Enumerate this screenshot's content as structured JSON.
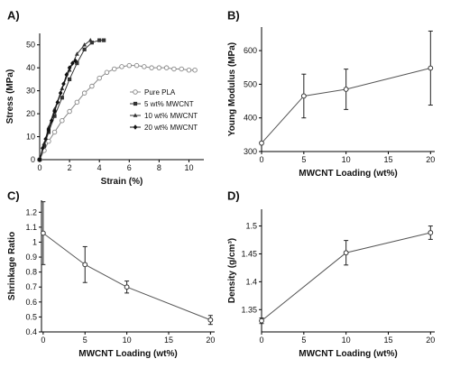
{
  "chart_data": [
    {
      "panel": "A)",
      "type": "line",
      "xlabel": "Strain (%)",
      "ylabel": "Stress (MPa)",
      "xlim": [
        0,
        11
      ],
      "ylim": [
        0,
        55
      ],
      "xticks": [
        0,
        2,
        4,
        6,
        8,
        10
      ],
      "yticks": [
        0,
        10,
        20,
        30,
        40,
        50
      ],
      "grid": false,
      "legend_position": "center-right",
      "series": [
        {
          "name": "Pure PLA",
          "marker": "circle-open",
          "color": "#888888",
          "x": [
            0,
            0.3,
            0.6,
            1.0,
            1.5,
            2.0,
            2.5,
            3.0,
            3.5,
            4.0,
            4.5,
            5.0,
            5.5,
            6.0,
            6.5,
            7.0,
            7.5,
            8.0,
            8.5,
            9.0,
            9.5,
            10.0,
            10.4
          ],
          "y": [
            0,
            4,
            8,
            12,
            17,
            21,
            25,
            29,
            32,
            35.5,
            38,
            39.5,
            40.5,
            41,
            41,
            40.5,
            40,
            40,
            40,
            39.5,
            39.5,
            39,
            39
          ]
        },
        {
          "name": "5 wt% MWCNT",
          "marker": "square",
          "color": "#333333",
          "x": [
            0,
            0.3,
            0.6,
            1.0,
            1.5,
            2.0,
            2.5,
            3.0,
            3.5,
            4.0,
            4.3
          ],
          "y": [
            0,
            6,
            12,
            19,
            27,
            35,
            42,
            48,
            51,
            52,
            52
          ]
        },
        {
          "name": "10 wt% MWCNT",
          "marker": "triangle",
          "color": "#333333",
          "x": [
            0,
            0.3,
            0.6,
            1.0,
            1.5,
            2.0,
            2.5,
            3.0,
            3.4
          ],
          "y": [
            0,
            7,
            14,
            22,
            31,
            39,
            46,
            50,
            52
          ]
        },
        {
          "name": "20 wt% MWCNT",
          "marker": "diamond",
          "color": "#111111",
          "x": [
            0,
            0.2,
            0.4,
            0.6,
            0.8,
            1.0,
            1.2,
            1.4,
            1.6,
            1.8,
            2.0,
            2.2,
            2.4
          ],
          "y": [
            0,
            5,
            9,
            13,
            17,
            21,
            25,
            29,
            33,
            37,
            40,
            42,
            43
          ]
        }
      ]
    },
    {
      "panel": "B)",
      "type": "line",
      "xlabel": "MWCNT Loading (wt%)",
      "ylabel": "Young Modulus (MPa)",
      "xlim": [
        0,
        20.5
      ],
      "ylim": [
        300,
        670
      ],
      "xticks": [
        0,
        5,
        10,
        15,
        20
      ],
      "yticks": [
        300,
        400,
        500,
        600
      ],
      "grid": false,
      "x": [
        0,
        5,
        10,
        20
      ],
      "y": [
        325,
        465,
        485,
        548
      ],
      "err": [
        0,
        65,
        60,
        110
      ]
    },
    {
      "panel": "C)",
      "type": "line",
      "xlabel": "MWCNT Loading (wt%)",
      "ylabel": "Shrinkage Ratio",
      "xlim": [
        -0.2,
        20.5
      ],
      "ylim": [
        0.4,
        1.28
      ],
      "xticks": [
        0,
        5,
        10,
        15,
        20
      ],
      "yticks": [
        0.4,
        0.5,
        0.6,
        0.7,
        0.8,
        0.9,
        1,
        1.1,
        1.2
      ],
      "grid": false,
      "x": [
        0,
        5,
        10,
        20
      ],
      "y": [
        1.06,
        0.85,
        0.7,
        0.48
      ],
      "err": [
        0.21,
        0.12,
        0.04,
        0.03
      ]
    },
    {
      "panel": "D)",
      "type": "line",
      "xlabel": "MWCNT Loading (wt%)",
      "ylabel": "Density (g/cm³)",
      "xlim": [
        0,
        20.5
      ],
      "ylim": [
        1.31,
        1.53
      ],
      "xticks": [
        0,
        5,
        10,
        15,
        20
      ],
      "yticks": [
        1.35,
        1.4,
        1.45,
        1.5
      ],
      "grid": false,
      "x": [
        0,
        10,
        20
      ],
      "y": [
        1.33,
        1.452,
        1.488
      ],
      "err": [
        0.005,
        0.022,
        0.012
      ]
    }
  ]
}
